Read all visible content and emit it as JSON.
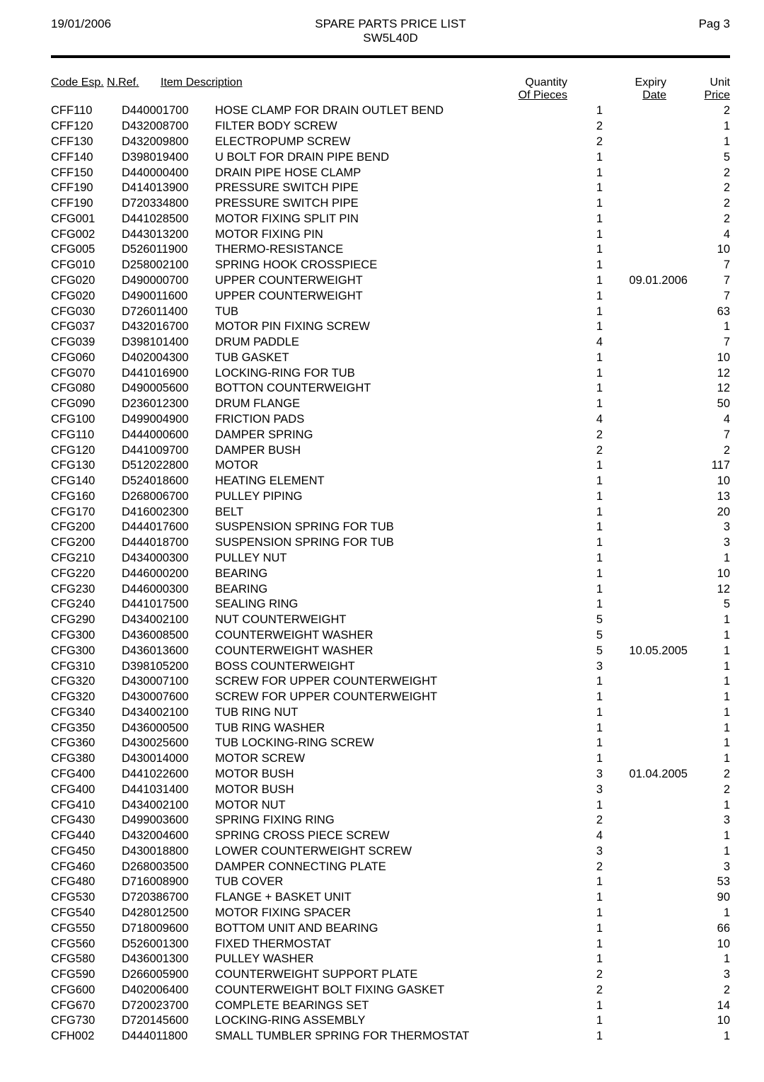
{
  "header": {
    "date": "19/01/2006",
    "title_line1": "SPARE PARTS PRICE LIST",
    "title_line2": "SW5L40D",
    "page_label": "Pag 3"
  },
  "columns": {
    "code_esp": "Code Esp.",
    "nref": "N.Ref.",
    "item_desc": "Item Description",
    "qty_l1": "Quantity",
    "qty_l2": "Of Pieces",
    "exp_l1": "Expiry",
    "exp_l2": "Date",
    "price_l1": "Unit",
    "price_l2": "Price"
  },
  "rows": [
    {
      "code": "CFF110",
      "nref": "D440001700",
      "desc": "HOSE CLAMP FOR DRAIN OUTLET BEND",
      "qty": "1",
      "exp": "",
      "price": "2"
    },
    {
      "code": "CFF120",
      "nref": "D432008700",
      "desc": "FILTER BODY SCREW",
      "qty": "2",
      "exp": "",
      "price": "1"
    },
    {
      "code": "CFF130",
      "nref": "D432009800",
      "desc": "ELECTROPUMP SCREW",
      "qty": "2",
      "exp": "",
      "price": "1"
    },
    {
      "code": "CFF140",
      "nref": "D398019400",
      "desc": "U BOLT FOR DRAIN PIPE BEND",
      "qty": "1",
      "exp": "",
      "price": "5"
    },
    {
      "code": "CFF150",
      "nref": "D440000400",
      "desc": "DRAIN PIPE HOSE CLAMP",
      "qty": "1",
      "exp": "",
      "price": "2"
    },
    {
      "code": "CFF190",
      "nref": "D414013900",
      "desc": "PRESSURE SWITCH PIPE",
      "qty": "1",
      "exp": "",
      "price": "2"
    },
    {
      "code": "CFF190",
      "nref": "D720334800",
      "desc": "PRESSURE SWITCH PIPE",
      "qty": "1",
      "exp": "",
      "price": "2"
    },
    {
      "code": "CFG001",
      "nref": "D441028500",
      "desc": "MOTOR FIXING SPLIT PIN",
      "qty": "1",
      "exp": "",
      "price": "2"
    },
    {
      "code": "CFG002",
      "nref": "D443013200",
      "desc": "MOTOR FIXING PIN",
      "qty": "1",
      "exp": "",
      "price": "4"
    },
    {
      "code": "CFG005",
      "nref": "D526011900",
      "desc": "THERMO-RESISTANCE",
      "qty": "1",
      "exp": "",
      "price": "10"
    },
    {
      "code": "CFG010",
      "nref": "D258002100",
      "desc": "SPRING HOOK CROSSPIECE",
      "qty": "1",
      "exp": "",
      "price": "7"
    },
    {
      "code": "CFG020",
      "nref": "D490000700",
      "desc": "UPPER COUNTERWEIGHT",
      "qty": "1",
      "exp": "09.01.2006",
      "price": "7"
    },
    {
      "code": "CFG020",
      "nref": "D490011600",
      "desc": "UPPER COUNTERWEIGHT",
      "qty": "1",
      "exp": "",
      "price": "7"
    },
    {
      "code": "CFG030",
      "nref": "D726011400",
      "desc": "TUB",
      "qty": "1",
      "exp": "",
      "price": "63"
    },
    {
      "code": "CFG037",
      "nref": "D432016700",
      "desc": "MOTOR PIN FIXING SCREW",
      "qty": "1",
      "exp": "",
      "price": "1"
    },
    {
      "code": "CFG039",
      "nref": "D398101400",
      "desc": "DRUM PADDLE",
      "qty": "4",
      "exp": "",
      "price": "7"
    },
    {
      "code": "CFG060",
      "nref": "D402004300",
      "desc": "TUB GASKET",
      "qty": "1",
      "exp": "",
      "price": "10"
    },
    {
      "code": "CFG070",
      "nref": "D441016900",
      "desc": "LOCKING-RING FOR TUB",
      "qty": "1",
      "exp": "",
      "price": "12"
    },
    {
      "code": "CFG080",
      "nref": "D490005600",
      "desc": "BOTTON COUNTERWEIGHT",
      "qty": "1",
      "exp": "",
      "price": "12"
    },
    {
      "code": "CFG090",
      "nref": "D236012300",
      "desc": "DRUM FLANGE",
      "qty": "1",
      "exp": "",
      "price": "50"
    },
    {
      "code": "CFG100",
      "nref": "D499004900",
      "desc": "FRICTION PADS",
      "qty": "4",
      "exp": "",
      "price": "4"
    },
    {
      "code": "CFG110",
      "nref": "D444000600",
      "desc": "DAMPER SPRING",
      "qty": "2",
      "exp": "",
      "price": "7"
    },
    {
      "code": "CFG120",
      "nref": "D441009700",
      "desc": "DAMPER BUSH",
      "qty": "2",
      "exp": "",
      "price": "2"
    },
    {
      "code": "CFG130",
      "nref": "D512022800",
      "desc": "MOTOR",
      "qty": "1",
      "exp": "",
      "price": "117"
    },
    {
      "code": "CFG140",
      "nref": "D524018600",
      "desc": "HEATING ELEMENT",
      "qty": "1",
      "exp": "",
      "price": "10"
    },
    {
      "code": "CFG160",
      "nref": "D268006700",
      "desc": "PULLEY PIPING",
      "qty": "1",
      "exp": "",
      "price": "13"
    },
    {
      "code": "CFG170",
      "nref": "D416002300",
      "desc": "BELT",
      "qty": "1",
      "exp": "",
      "price": "20"
    },
    {
      "code": "CFG200",
      "nref": "D444017600",
      "desc": "SUSPENSION SPRING FOR TUB",
      "qty": "1",
      "exp": "",
      "price": "3"
    },
    {
      "code": "CFG200",
      "nref": "D444018700",
      "desc": "SUSPENSION SPRING FOR TUB",
      "qty": "1",
      "exp": "",
      "price": "3"
    },
    {
      "code": "CFG210",
      "nref": "D434000300",
      "desc": "PULLEY NUT",
      "qty": "1",
      "exp": "",
      "price": "1"
    },
    {
      "code": "CFG220",
      "nref": "D446000200",
      "desc": "BEARING",
      "qty": "1",
      "exp": "",
      "price": "10"
    },
    {
      "code": "CFG230",
      "nref": "D446000300",
      "desc": "BEARING",
      "qty": "1",
      "exp": "",
      "price": "12"
    },
    {
      "code": "CFG240",
      "nref": "D441017500",
      "desc": "SEALING RING",
      "qty": "1",
      "exp": "",
      "price": "5"
    },
    {
      "code": "CFG290",
      "nref": "D434002100",
      "desc": "NUT COUNTERWEIGHT",
      "qty": "5",
      "exp": "",
      "price": "1"
    },
    {
      "code": "CFG300",
      "nref": "D436008500",
      "desc": "COUNTERWEIGHT WASHER",
      "qty": "5",
      "exp": "",
      "price": "1"
    },
    {
      "code": "CFG300",
      "nref": "D436013600",
      "desc": "COUNTERWEIGHT WASHER",
      "qty": "5",
      "exp": "10.05.2005",
      "price": "1"
    },
    {
      "code": "CFG310",
      "nref": "D398105200",
      "desc": "BOSS COUNTERWEIGHT",
      "qty": "3",
      "exp": "",
      "price": "1"
    },
    {
      "code": "CFG320",
      "nref": "D430007100",
      "desc": "SCREW FOR UPPER COUNTERWEIGHT",
      "qty": "1",
      "exp": "",
      "price": "1"
    },
    {
      "code": "CFG320",
      "nref": "D430007600",
      "desc": "SCREW FOR UPPER COUNTERWEIGHT",
      "qty": "1",
      "exp": "",
      "price": "1"
    },
    {
      "code": "CFG340",
      "nref": "D434002100",
      "desc": "TUB RING NUT",
      "qty": "1",
      "exp": "",
      "price": "1"
    },
    {
      "code": "CFG350",
      "nref": "D436000500",
      "desc": "TUB RING WASHER",
      "qty": "1",
      "exp": "",
      "price": "1"
    },
    {
      "code": "CFG360",
      "nref": "D430025600",
      "desc": "TUB LOCKING-RING SCREW",
      "qty": "1",
      "exp": "",
      "price": "1"
    },
    {
      "code": "CFG380",
      "nref": "D430014000",
      "desc": "MOTOR SCREW",
      "qty": "1",
      "exp": "",
      "price": "1"
    },
    {
      "code": "CFG400",
      "nref": "D441022600",
      "desc": "MOTOR BUSH",
      "qty": "3",
      "exp": "01.04.2005",
      "price": "2"
    },
    {
      "code": "CFG400",
      "nref": "D441031400",
      "desc": "MOTOR BUSH",
      "qty": "3",
      "exp": "",
      "price": "2"
    },
    {
      "code": "CFG410",
      "nref": "D434002100",
      "desc": "MOTOR NUT",
      "qty": "1",
      "exp": "",
      "price": "1"
    },
    {
      "code": "CFG430",
      "nref": "D499003600",
      "desc": "SPRING FIXING RING",
      "qty": "2",
      "exp": "",
      "price": "3"
    },
    {
      "code": "CFG440",
      "nref": "D432004600",
      "desc": "SPRING CROSS PIECE SCREW",
      "qty": "4",
      "exp": "",
      "price": "1"
    },
    {
      "code": "CFG450",
      "nref": "D430018800",
      "desc": "LOWER COUNTERWEIGHT SCREW",
      "qty": "3",
      "exp": "",
      "price": "1"
    },
    {
      "code": "CFG460",
      "nref": "D268003500",
      "desc": "DAMPER CONNECTING PLATE",
      "qty": "2",
      "exp": "",
      "price": "3"
    },
    {
      "code": "CFG480",
      "nref": "D716008900",
      "desc": "TUB COVER",
      "qty": "1",
      "exp": "",
      "price": "53"
    },
    {
      "code": "CFG530",
      "nref": "D720386700",
      "desc": "FLANGE + BASKET UNIT",
      "qty": "1",
      "exp": "",
      "price": "90"
    },
    {
      "code": "CFG540",
      "nref": "D428012500",
      "desc": "MOTOR FIXING SPACER",
      "qty": "1",
      "exp": "",
      "price": "1"
    },
    {
      "code": "CFG550",
      "nref": "D718009600",
      "desc": "BOTTOM UNIT AND BEARING",
      "qty": "1",
      "exp": "",
      "price": "66"
    },
    {
      "code": "CFG560",
      "nref": "D526001300",
      "desc": "FIXED THERMOSTAT",
      "qty": "1",
      "exp": "",
      "price": "10"
    },
    {
      "code": "CFG580",
      "nref": "D436001300",
      "desc": "PULLEY WASHER",
      "qty": "1",
      "exp": "",
      "price": "1"
    },
    {
      "code": "CFG590",
      "nref": "D266005900",
      "desc": "COUNTERWEIGHT SUPPORT PLATE",
      "qty": "2",
      "exp": "",
      "price": "3"
    },
    {
      "code": "CFG600",
      "nref": "D402006400",
      "desc": "COUNTERWEIGHT BOLT FIXING GASKET",
      "qty": "2",
      "exp": "",
      "price": "2"
    },
    {
      "code": "CFG670",
      "nref": "D720023700",
      "desc": "COMPLETE BEARINGS SET",
      "qty": "1",
      "exp": "",
      "price": "14"
    },
    {
      "code": "CFG730",
      "nref": "D720145600",
      "desc": "LOCKING-RING ASSEMBLY",
      "qty": "1",
      "exp": "",
      "price": "10"
    },
    {
      "code": "CFH002",
      "nref": "D444011800",
      "desc": "SMALL TUMBLER SPRING FOR THERMOSTAT",
      "qty": "1",
      "exp": "",
      "price": "1"
    }
  ]
}
